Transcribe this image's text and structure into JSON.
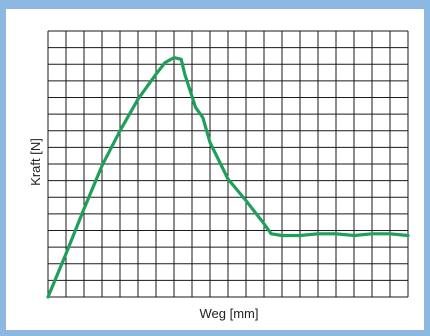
{
  "chart_data": {
    "type": "line",
    "title": "",
    "xlabel": "Weg [mm]",
    "ylabel": "Kraft [N]",
    "grid": true,
    "xlim": [
      0,
      20
    ],
    "ylim": [
      0,
      16
    ],
    "x_gridlines": 20,
    "y_gridlines": 16,
    "series": [
      {
        "name": "",
        "color": "#1ea05a",
        "x": [
          0,
          1,
          2,
          3,
          4,
          5,
          6,
          6.5,
          7,
          7.4,
          7.6,
          8.2,
          8.6,
          9,
          10,
          11,
          12,
          12.4,
          13,
          14,
          15,
          16,
          17,
          18,
          19,
          20
        ],
        "y": [
          0,
          2.6,
          5.3,
          7.9,
          10.0,
          11.9,
          13.4,
          14.1,
          14.4,
          14.3,
          13.4,
          11.4,
          10.8,
          9.3,
          7.1,
          5.8,
          4.4,
          3.8,
          3.7,
          3.7,
          3.8,
          3.8,
          3.7,
          3.8,
          3.8,
          3.7
        ]
      }
    ]
  }
}
